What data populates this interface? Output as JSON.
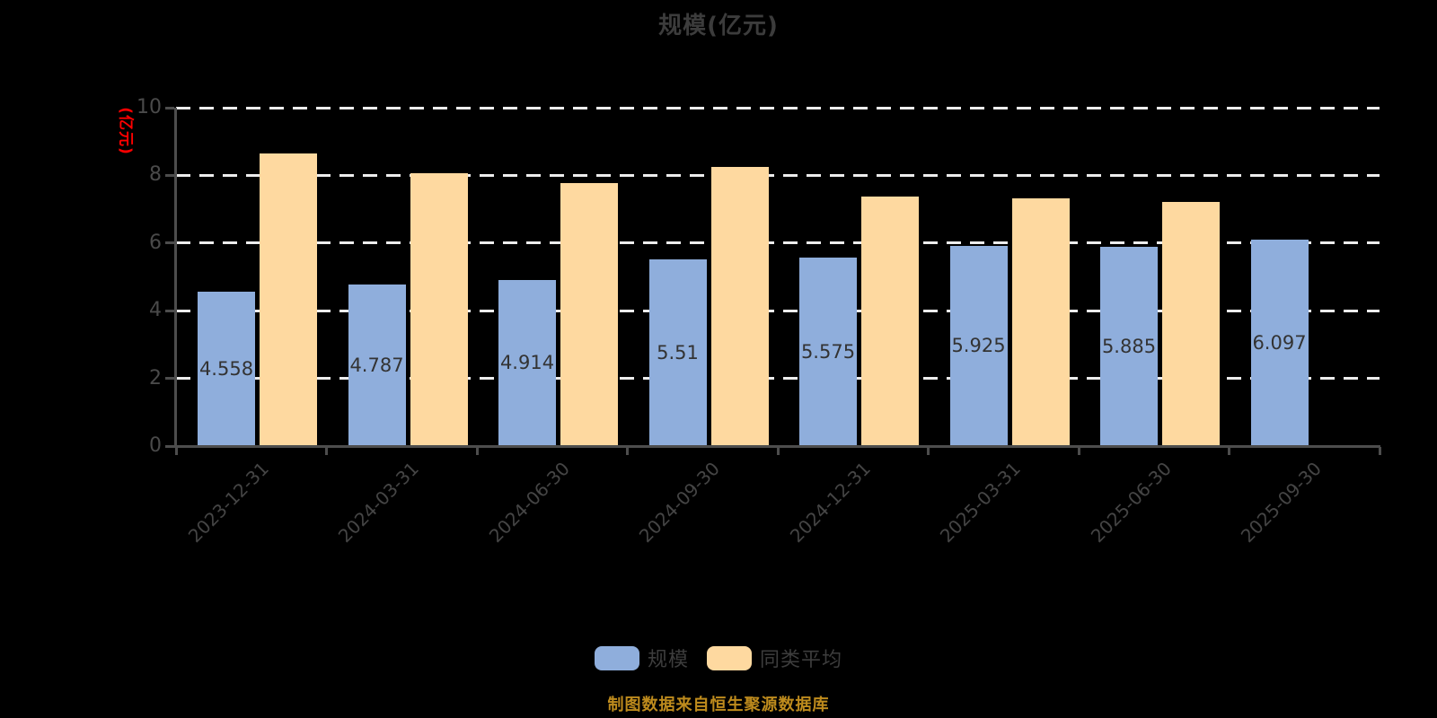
{
  "title": "规模(亿元)",
  "y_axis_name": "(亿元)",
  "source_note": "制图数据来自恒生聚源数据库",
  "legend": {
    "items": [
      {
        "label": "规模",
        "color": "#8FAEDC"
      },
      {
        "label": "同类平均",
        "color": "#FED9A0"
      }
    ]
  },
  "colors": {
    "background": "#000000",
    "title_text": "#3C3C3C",
    "scale_bar": "#8FAEDC",
    "average_bar": "#FED9A0",
    "gridline": "#EDEDED",
    "axis": "#4D4D4D",
    "y_tick_label": "#4A4A4A",
    "x_tick_label": "#454545",
    "bar_value_label": "#333333",
    "y_axis_name": "#FF0000",
    "legend_text": "#3D3D3D",
    "source_note_text": "#BE8B1D"
  },
  "chart_data": {
    "type": "bar",
    "title": "规模(亿元)",
    "ylabel": "(亿元)",
    "xlabel": "",
    "categories": [
      "2023-12-31",
      "2024-03-31",
      "2024-06-30",
      "2024-09-30",
      "2024-12-31",
      "2025-03-31",
      "2025-06-30",
      "2025-09-30"
    ],
    "series": [
      {
        "name": "规模",
        "color": "#8FAEDC",
        "values": [
          4.558,
          4.787,
          4.914,
          5.51,
          5.575,
          5.925,
          5.885,
          6.097
        ],
        "value_labels": true
      },
      {
        "name": "同类平均",
        "color": "#FED9A0",
        "values": [
          8.64,
          8.06,
          7.78,
          8.26,
          7.38,
          7.31,
          7.22,
          null
        ],
        "value_labels": false
      }
    ],
    "ylim": [
      0,
      10
    ],
    "yticks": [
      0,
      2,
      4,
      6,
      8,
      10
    ],
    "grid": "horizontal-dashed-white",
    "legend_position": "bottom",
    "x_label_rotation": 45
  }
}
